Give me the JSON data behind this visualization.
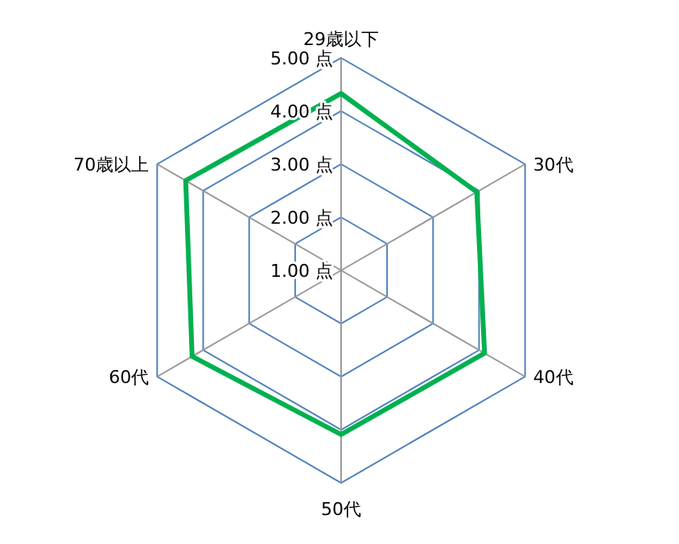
{
  "chart_data": {
    "type": "radar",
    "categories": [
      "29歳以下",
      "30代",
      "40代",
      "50代",
      "60代",
      "70歳以上"
    ],
    "series": [
      {
        "color": "#00b050",
        "values": [
          4.33,
          3.95,
          4.12,
          4.09,
          4.24,
          4.38
        ]
      }
    ],
    "ylim": [
      1,
      5
    ],
    "yticks": [
      {
        "value": 1,
        "label": "1.00 点"
      },
      {
        "value": 2,
        "label": "2.00 点"
      },
      {
        "value": 3,
        "label": "3.00 点"
      },
      {
        "value": 4,
        "label": "4.00 点"
      },
      {
        "value": 5,
        "label": "5.00 点"
      }
    ],
    "grid": true
  }
}
